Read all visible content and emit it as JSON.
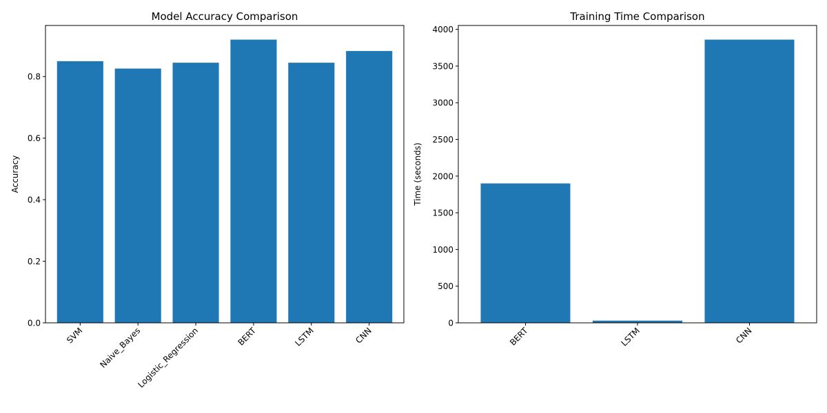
{
  "chart_data": [
    {
      "type": "bar",
      "title": "Model Accuracy Comparison",
      "xlabel": "",
      "ylabel": "Accuracy",
      "categories": [
        "SVM",
        "Naive_Bayes",
        "Logistic_Regression",
        "BERT",
        "LSTM",
        "CNN"
      ],
      "values": [
        0.85,
        0.826,
        0.845,
        0.92,
        0.845,
        0.883
      ],
      "ylim": [
        0,
        0.966
      ],
      "yticks": [
        0.0,
        0.2,
        0.4,
        0.6,
        0.8
      ],
      "ytick_labels": [
        "0.0",
        "0.2",
        "0.4",
        "0.6",
        "0.8"
      ],
      "xtick_rotation": 45,
      "grid": false,
      "bar_color": "#1f77b4"
    },
    {
      "type": "bar",
      "title": "Training Time Comparison",
      "xlabel": "",
      "ylabel": "Time (seconds)",
      "categories": [
        "BERT",
        "LSTM",
        "CNN"
      ],
      "values": [
        1900,
        30,
        3860
      ],
      "ylim": [
        0,
        4053
      ],
      "yticks": [
        0,
        500,
        1000,
        1500,
        2000,
        2500,
        3000,
        3500,
        4000
      ],
      "ytick_labels": [
        "0",
        "500",
        "1000",
        "1500",
        "2000",
        "2500",
        "3000",
        "3500",
        "4000"
      ],
      "xtick_rotation": 45,
      "grid": false,
      "bar_color": "#1f77b4"
    }
  ]
}
